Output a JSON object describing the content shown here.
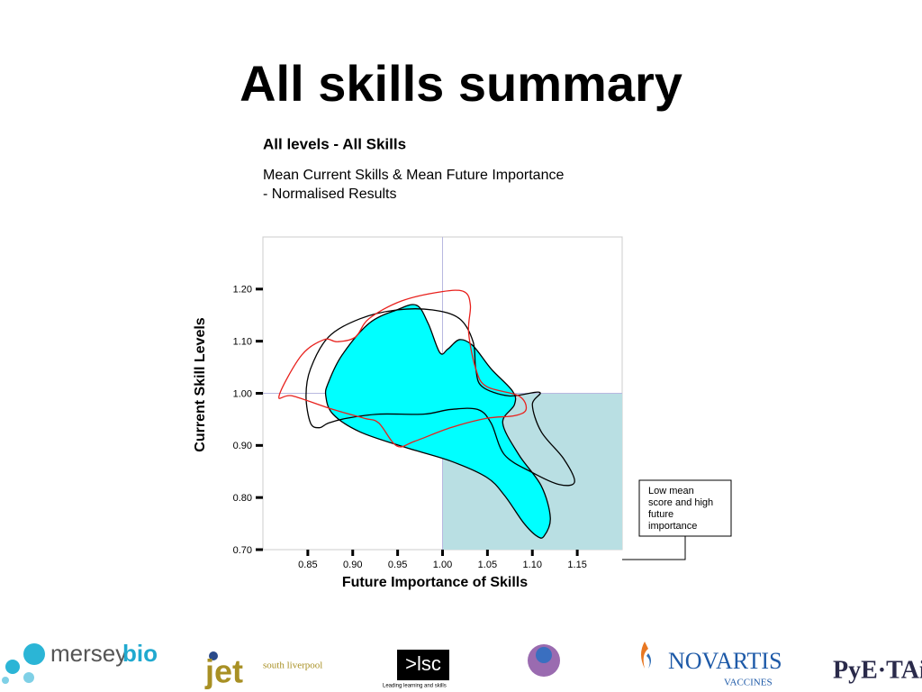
{
  "page": {
    "title": "All skills summary"
  },
  "chart_data": {
    "type": "contour",
    "title": "All levels - All Skills",
    "subtitle": [
      "Mean Current Skills & Mean Future Importance",
      "- Normalised Results"
    ],
    "x_label": "Future Importance of Skills",
    "y_label": "Current Skill Levels",
    "xlim": [
      0.8,
      1.2
    ],
    "ylim": [
      0.7,
      1.3
    ],
    "xticks": [
      0.85,
      {
        "value": 0.9,
        "label": "0.90"
      },
      0.95,
      {
        "value": 1.0,
        "label": "1.00"
      },
      1.05,
      {
        "value": 1.1,
        "label": "1.10"
      },
      1.15
    ],
    "yticks": [
      {
        "value": 0.7,
        "label": "0.70"
      },
      {
        "value": 0.8,
        "label": "0.80"
      },
      {
        "value": 0.9,
        "label": "0.90"
      },
      {
        "value": 1.0,
        "label": "1.00"
      },
      {
        "value": 1.1,
        "label": "1.10"
      },
      {
        "value": 1.2,
        "label": "1.20"
      }
    ],
    "reference": {
      "x": 1.0,
      "y": 1.0
    },
    "quadrant_color": "#b9dfe3",
    "series": [
      {
        "fill": "#00ffff",
        "stroke": "#000000",
        "x": [
          0.873,
          0.888,
          0.918,
          0.949,
          0.971,
          0.984,
          0.997,
          1.006,
          1.019,
          1.034,
          1.054,
          1.078,
          1.08,
          1.067,
          1.085,
          1.11,
          1.12,
          1.113,
          1.105,
          1.09,
          1.069,
          1.049,
          1.009,
          0.959,
          0.908,
          0.878,
          0.87
        ],
        "y": [
          1.021,
          1.073,
          1.134,
          1.16,
          1.169,
          1.134,
          1.078,
          1.085,
          1.103,
          1.091,
          1.047,
          1.004,
          0.978,
          0.943,
          0.882,
          0.822,
          0.761,
          0.726,
          0.726,
          0.752,
          0.804,
          0.839,
          0.87,
          0.896,
          0.926,
          0.96,
          0.995
        ]
      },
      {
        "fill": "none",
        "stroke": "#000000",
        "x": [
          0.853,
          0.848,
          0.853,
          0.873,
          0.908,
          0.949,
          0.989,
          1.019,
          1.034,
          1.037,
          1.044,
          1.074,
          1.108,
          1.1,
          1.11,
          1.135,
          1.147,
          1.13,
          1.1,
          1.069,
          1.054,
          1.039,
          1.009,
          0.979,
          0.929,
          0.893,
          0.873,
          0.863
        ],
        "y": [
          0.943,
          0.995,
          1.047,
          1.108,
          1.143,
          1.16,
          1.16,
          1.143,
          1.099,
          1.047,
          1.013,
          0.995,
          1.002,
          0.978,
          0.926,
          0.874,
          0.83,
          0.825,
          0.848,
          0.882,
          0.943,
          0.969,
          0.969,
          0.96,
          0.96,
          0.952,
          0.943,
          0.934
        ]
      },
      {
        "fill": "none",
        "stroke": "#e8201c",
        "x": [
          0.818,
          0.843,
          0.868,
          0.883,
          0.903,
          0.918,
          0.954,
          0.999,
          1.024,
          1.031,
          1.029,
          1.037,
          1.049,
          1.085,
          1.093,
          1.08,
          1.049,
          1.009,
          0.969,
          0.949,
          0.929,
          0.913,
          0.878,
          0.833
        ],
        "y": [
          0.995,
          1.073,
          1.103,
          1.099,
          1.108,
          1.143,
          1.177,
          1.195,
          1.195,
          1.169,
          1.117,
          1.047,
          1.013,
          0.995,
          0.969,
          0.957,
          0.952,
          0.934,
          0.908,
          0.899,
          0.943,
          0.952,
          0.969,
          0.995
        ]
      }
    ],
    "annotation": [
      "Low mean",
      "score and high",
      "future",
      "importance"
    ]
  },
  "footer": {
    "merseybio": [
      "mersey",
      "bio"
    ],
    "jet": [
      "jet",
      "south liverpool"
    ],
    "lsc": [
      ">lsc",
      "Leading learning and skills"
    ],
    "novartis": [
      "NOVARTIS",
      "VACCINES"
    ],
    "pyetait": "PyE·TAiT"
  }
}
